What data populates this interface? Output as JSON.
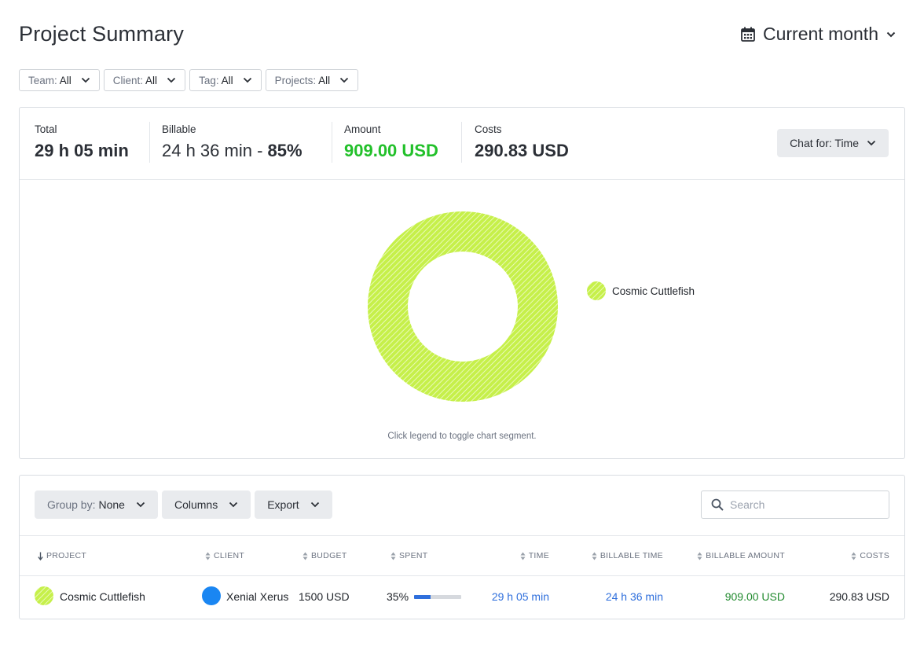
{
  "page": {
    "title": "Project Summary",
    "period_label": "Current month"
  },
  "filters": [
    {
      "key": "Team:",
      "value": "All"
    },
    {
      "key": "Client:",
      "value": "All"
    },
    {
      "key": "Tag:",
      "value": "All"
    },
    {
      "key": "Projects:",
      "value": "All"
    }
  ],
  "summary": {
    "total": {
      "label": "Total",
      "value": "29 h 05 min"
    },
    "billable": {
      "label": "Billable",
      "value": "24 h 36 min",
      "separator": " - ",
      "percent": "85%"
    },
    "amount": {
      "label": "Amount",
      "value": "909.00 USD"
    },
    "costs": {
      "label": "Costs",
      "value": "290.83 USD"
    },
    "chart_for": {
      "key": "Chat for:",
      "value": "Time"
    }
  },
  "chart": {
    "legend": [
      {
        "name": "Cosmic Cuttlefish",
        "color": "#c6f04a"
      }
    ],
    "hint": "Click legend to toggle chart segment."
  },
  "chart_data": {
    "type": "pie",
    "labels": [
      "Cosmic Cuttlefish"
    ],
    "values": [
      100
    ],
    "colors": [
      "#c6f04a"
    ],
    "donut": true,
    "legend": "right"
  },
  "table": {
    "toolbar": {
      "group_by_key": "Group by:",
      "group_by_value": "None",
      "columns_label": "Columns",
      "export_label": "Export",
      "search_placeholder": "Search"
    },
    "headers": {
      "project": "PROJECT",
      "client": "CLIENT",
      "budget": "BUDGET",
      "spent": "SPENT",
      "time": "TIME",
      "billable_time": "BILLABLE TIME",
      "billable_amount": "BILLABLE AMOUNT",
      "costs": "COSTS"
    },
    "rows": [
      {
        "project": "Cosmic Cuttlefish",
        "client": "Xenial Xerus",
        "budget": "1500 USD",
        "spent": "35%",
        "spent_fraction": 0.35,
        "time": "29 h 05 min",
        "billable_time": "24 h 36 min",
        "billable_amount": "909.00 USD",
        "costs": "290.83 USD"
      }
    ]
  },
  "colors": {
    "accent_green": "#22c02a",
    "link_blue": "#2f6fdc",
    "project_color": "#c6f04a",
    "client_color": "#1a86f2"
  }
}
